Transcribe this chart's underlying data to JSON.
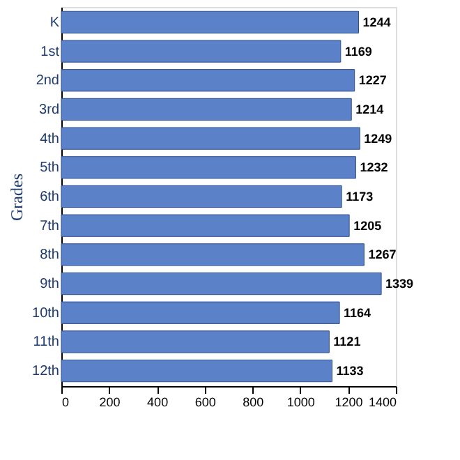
{
  "chart_data": {
    "type": "bar",
    "orientation": "horizontal",
    "ylabel": "Grades",
    "categories": [
      "K",
      "1st",
      "2nd",
      "3rd",
      "4th",
      "5th",
      "6th",
      "7th",
      "8th",
      "9th",
      "10th",
      "11th",
      "12th"
    ],
    "values": [
      1244,
      1169,
      1227,
      1214,
      1249,
      1232,
      1173,
      1205,
      1267,
      1339,
      1164,
      1121,
      1133
    ],
    "color": "#5b82c8",
    "xlim": [
      0,
      1400
    ],
    "xticks": [
      0,
      200,
      400,
      600,
      800,
      1000,
      1200,
      1400
    ],
    "data_labels": true
  }
}
